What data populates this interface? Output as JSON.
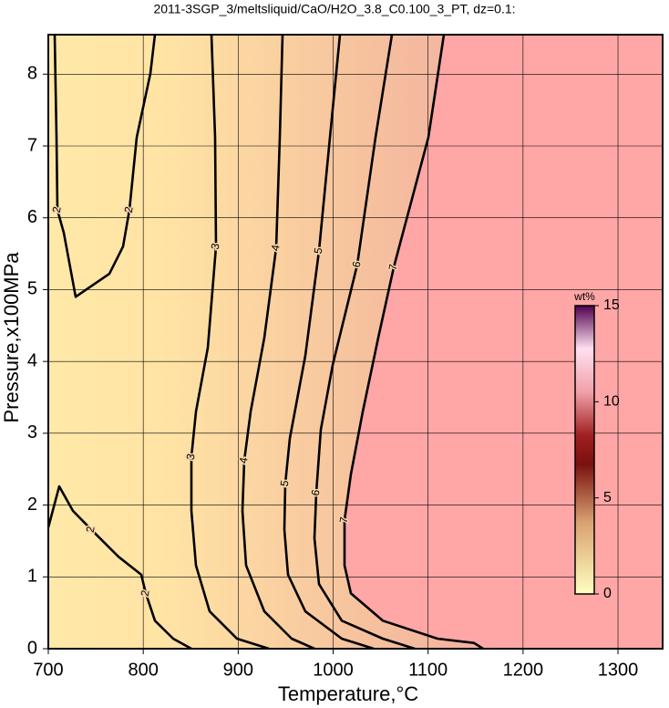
{
  "chart_data": {
    "type": "contour",
    "title": "2011-3SGP_3/meltsliquid/CaO/H2O_3.8_C0.100_3_PT, dz=0.1:",
    "x_label": "Temperature,°C",
    "y_label": "Pressure,x100MPa",
    "xlim": [
      700,
      1347
    ],
    "ylim": [
      0,
      8.55
    ],
    "xticks": [
      700,
      800,
      900,
      1000,
      1100,
      1200,
      1300
    ],
    "yticks": [
      0,
      1,
      2,
      3,
      4,
      5,
      6,
      7,
      8
    ],
    "grid": true,
    "color": "#000000",
    "contours": [
      {
        "level": 2,
        "x": [
          706.7,
          708.6,
          709.6,
          716.3,
          728.8,
          764.3,
          778.7,
          785.4,
          793.1,
          807.5,
          812.3
        ],
        "y": [
          8.55,
          7.12,
          6.11,
          5.79,
          4.9,
          5.22,
          5.6,
          6.11,
          7.12,
          8.01,
          8.55
        ]
      },
      {
        "level": 2,
        "x": [
          700,
          711.5,
          725.9,
          745.1,
          773.9,
          797.9,
          802.7,
          812.3,
          831.5,
          850.7
        ],
        "y": [
          1.69,
          2.26,
          1.92,
          1.66,
          1.28,
          1.03,
          0.77,
          0.39,
          0.14,
          0
        ]
      },
      {
        "level": 3,
        "x": [
          871.8,
          875.7,
          876.6,
          868,
          855.5,
          850.7,
          850.7,
          855.5,
          869.9,
          898.7,
          932.3
        ],
        "y": [
          8.55,
          7.12,
          5.6,
          4.19,
          3.3,
          2.67,
          1.92,
          1.16,
          0.52,
          0.14,
          0
        ]
      },
      {
        "level": 4,
        "x": [
          946.7,
          943.8,
          940,
          927.5,
          913.1,
          906.4,
          904.5,
          908.3,
          927.5,
          956.3,
          980.3
        ],
        "y": [
          8.55,
          7.12,
          5.58,
          4.33,
          3.3,
          2.62,
          1.92,
          1.16,
          0.52,
          0.14,
          0
        ]
      },
      {
        "level": 5,
        "x": [
          1007.2,
          996.6,
          985.1,
          970.7,
          954.4,
          949.6,
          948.6,
          952.5,
          970.7,
          1009.1,
          1042.7
        ],
        "y": [
          8.55,
          7.12,
          5.54,
          4.08,
          2.93,
          2.3,
          1.66,
          1.03,
          0.52,
          0.14,
          0
        ]
      },
      {
        "level": 6,
        "x": [
          1061.9,
          1044.6,
          1025.4,
          999.5,
          987,
          982.2,
          980.3,
          985.1,
          1009.1,
          1052.3,
          1085.9
        ],
        "y": [
          8.55,
          7.12,
          5.35,
          3.95,
          3.05,
          2.17,
          1.54,
          0.9,
          0.39,
          0.14,
          0
        ]
      },
      {
        "level": 7,
        "x": [
          1116.6,
          1100.3,
          1063.8,
          1047.5,
          1031.2,
          1018.7,
          1012,
          1012,
          1018.7,
          1052.3,
          1109.9,
          1148.3,
          1157.9
        ],
        "y": [
          8.55,
          7.12,
          5.31,
          4.33,
          3.3,
          2.43,
          1.79,
          1.16,
          0.77,
          0.39,
          0.14,
          0.08,
          0
        ]
      }
    ],
    "colorbar": {
      "label": "wt%",
      "lim": [
        0,
        15
      ],
      "ticks": [
        0,
        5,
        10,
        15
      ]
    }
  }
}
